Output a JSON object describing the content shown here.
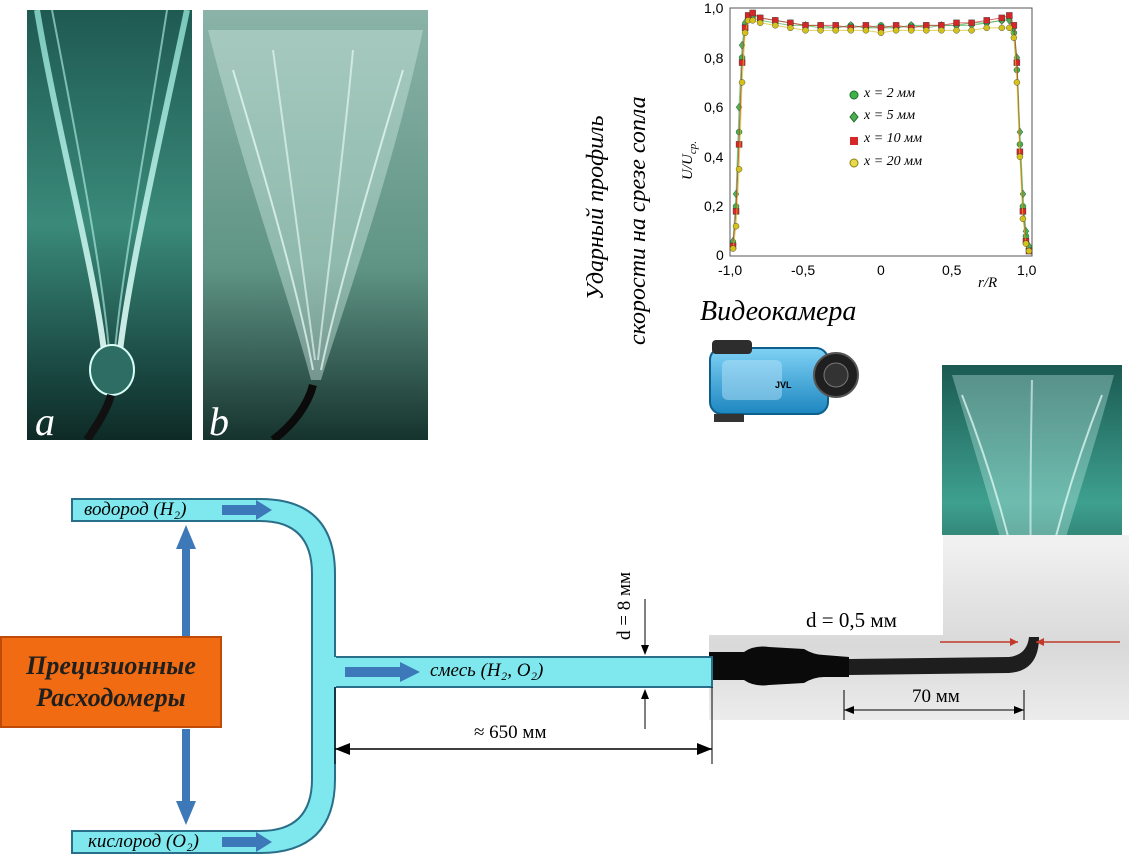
{
  "photos": {
    "a_label": "a",
    "b_label": "b"
  },
  "profile": {
    "side_title_line1": "Ударный профиль",
    "side_title_line2": "скорости на срезе сопла",
    "ylabel_main": "U/U",
    "ylabel_sub": "ср.",
    "xlabel": "r/R",
    "y_ticks": [
      "1,0",
      "0,8",
      "0,6",
      "0,4",
      "0,2",
      "0"
    ],
    "x_ticks": [
      "-1,0",
      "-0,5",
      "0",
      "0,5",
      "1,0"
    ],
    "legend": [
      {
        "label": "x = 2 мм",
        "color": "#3cb44b",
        "marker": "circle"
      },
      {
        "label": "x = 5 мм",
        "color": "#4caf50",
        "marker": "diamond"
      },
      {
        "label": "x = 10 мм",
        "color": "#d62728",
        "marker": "square"
      },
      {
        "label": "x = 20 мм",
        "color": "#d4c21a",
        "marker": "circle"
      }
    ]
  },
  "chart_data": {
    "type": "scatter",
    "title": "",
    "xlabel": "r/R",
    "ylabel": "U/Uср.",
    "xlim": [
      -1.0,
      1.0
    ],
    "ylim": [
      0,
      1.0
    ],
    "x_ticks": [
      -1.0,
      -0.5,
      0,
      0.5,
      1.0
    ],
    "y_ticks": [
      0,
      0.2,
      0.4,
      0.6,
      0.8,
      1.0
    ],
    "x": [
      -0.98,
      -0.96,
      -0.94,
      -0.92,
      -0.9,
      -0.88,
      -0.85,
      -0.8,
      -0.7,
      -0.6,
      -0.5,
      -0.4,
      -0.3,
      -0.2,
      -0.1,
      0,
      0.1,
      0.2,
      0.3,
      0.4,
      0.5,
      0.6,
      0.7,
      0.8,
      0.85,
      0.88,
      0.9,
      0.92,
      0.94,
      0.96,
      0.98
    ],
    "series": [
      {
        "name": "x = 2 мм",
        "values": [
          0.05,
          0.2,
          0.5,
          0.8,
          0.93,
          0.96,
          0.97,
          0.96,
          0.95,
          0.94,
          0.93,
          0.93,
          0.92,
          0.93,
          0.92,
          0.93,
          0.92,
          0.93,
          0.93,
          0.93,
          0.93,
          0.94,
          0.94,
          0.95,
          0.96,
          0.9,
          0.75,
          0.45,
          0.2,
          0.08,
          0.03
        ]
      },
      {
        "name": "x = 5 мм",
        "values": [
          0.06,
          0.25,
          0.6,
          0.85,
          0.94,
          0.96,
          0.96,
          0.95,
          0.94,
          0.93,
          0.93,
          0.92,
          0.92,
          0.93,
          0.92,
          0.92,
          0.92,
          0.93,
          0.92,
          0.93,
          0.93,
          0.93,
          0.94,
          0.95,
          0.95,
          0.92,
          0.8,
          0.5,
          0.25,
          0.1,
          0.04
        ]
      },
      {
        "name": "x = 10 мм",
        "values": [
          0.04,
          0.18,
          0.45,
          0.78,
          0.92,
          0.97,
          0.98,
          0.96,
          0.95,
          0.94,
          0.93,
          0.93,
          0.93,
          0.92,
          0.93,
          0.92,
          0.93,
          0.92,
          0.93,
          0.93,
          0.94,
          0.94,
          0.95,
          0.96,
          0.97,
          0.93,
          0.78,
          0.42,
          0.18,
          0.06,
          0.02
        ]
      },
      {
        "name": "x = 20 мм",
        "values": [
          0.03,
          0.12,
          0.35,
          0.7,
          0.9,
          0.95,
          0.95,
          0.94,
          0.93,
          0.92,
          0.91,
          0.91,
          0.91,
          0.91,
          0.91,
          0.9,
          0.91,
          0.91,
          0.91,
          0.91,
          0.91,
          0.91,
          0.92,
          0.92,
          0.92,
          0.88,
          0.7,
          0.4,
          0.15,
          0.05,
          0.02
        ]
      }
    ]
  },
  "camera": {
    "title": "Видеокамера"
  },
  "setup": {
    "hydrogen_label": "водород (H₂)",
    "oxygen_label": "кислород (O₂)",
    "mixture_label": "смесь (H₂, O₂)",
    "meters_line1": "Прецизионные",
    "meters_line2": "Расходомеры",
    "pipe_diameter": "d = 8 мм",
    "pipe_length": "≈ 650 мм",
    "nozzle_diameter": "d = 0,5 мм",
    "nozzle_length": "70 мм"
  },
  "colors": {
    "pipe_fill": "#7fe8ee",
    "pipe_stroke": "#2a6f8a",
    "arrow_blue": "#3d79b8",
    "meter_orange": "#f06b12"
  }
}
